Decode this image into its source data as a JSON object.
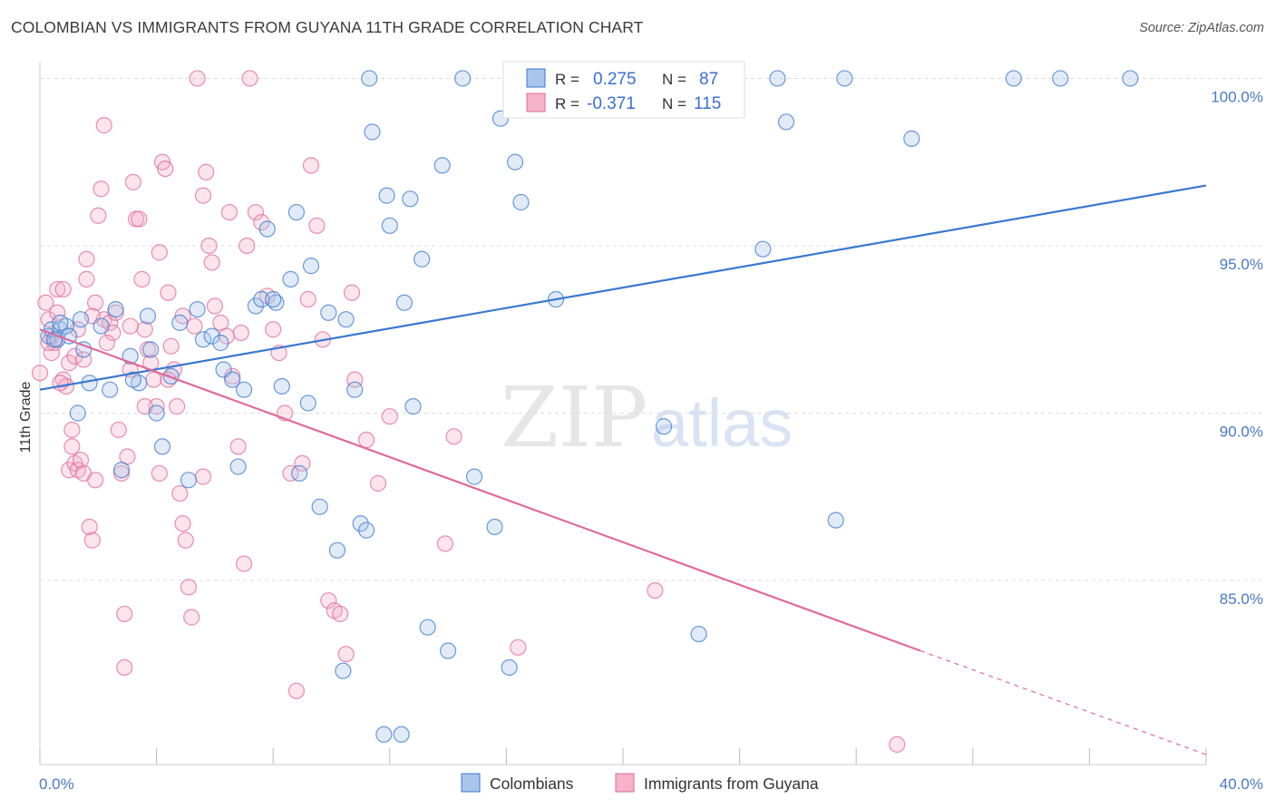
{
  "header": {
    "title": "COLOMBIAN VS IMMIGRANTS FROM GUYANA 11TH GRADE CORRELATION CHART",
    "source": "Source: ZipAtlas.com"
  },
  "watermark": {
    "zip": "ZIP",
    "atlas": "atlas"
  },
  "legend": {
    "r_label": "R =",
    "n_label": "N =",
    "rows": [
      {
        "series": "Colombians",
        "r": "0.275",
        "n": "87"
      },
      {
        "series": "Immigrants from Guyana",
        "r": "-0.371",
        "n": "115"
      }
    ]
  },
  "bottom_legend": [
    "Colombians",
    "Immigrants from Guyana"
  ],
  "colors": {
    "blue": "#3a78d0",
    "blue_fill": "#a9c5ec",
    "pink": "#e06a98",
    "pink_fill": "#f4b3c8",
    "grid": "#dcdcdc",
    "axis_text": "#4a78c2"
  },
  "chart_data": {
    "type": "scatter",
    "title": "COLOMBIAN VS IMMIGRANTS FROM GUYANA 11TH GRADE CORRELATION CHART",
    "xlabel": "",
    "ylabel": "11th Grade",
    "xlim": [
      0,
      40
    ],
    "ylim": [
      79.5,
      100.5
    ],
    "x_tick_labels": [
      "0.0%",
      "40.0%"
    ],
    "y_ticks": [
      85,
      90,
      95,
      100
    ],
    "y_tick_labels": [
      "85.0%",
      "90.0%",
      "95.0%",
      "100.0%"
    ],
    "grid": true,
    "legend_position": "top-center",
    "series": [
      {
        "name": "Colombians",
        "color": "#3a78d0",
        "trend": {
          "x": [
            0,
            40
          ],
          "y": [
            90.7,
            96.8
          ]
        },
        "points": [
          [
            0.3,
            92.3
          ],
          [
            0.4,
            92.5
          ],
          [
            0.6,
            92.2
          ],
          [
            0.7,
            92.5
          ],
          [
            0.9,
            92.6
          ],
          [
            0.7,
            92.7
          ],
          [
            1.0,
            92.3
          ],
          [
            1.4,
            92.8
          ],
          [
            1.5,
            91.9
          ],
          [
            1.7,
            90.9
          ],
          [
            1.3,
            90.0
          ],
          [
            2.1,
            92.6
          ],
          [
            2.4,
            90.7
          ],
          [
            2.6,
            93.1
          ],
          [
            2.8,
            88.3
          ],
          [
            3.1,
            91.7
          ],
          [
            3.4,
            90.9
          ],
          [
            3.7,
            92.9
          ],
          [
            3.8,
            91.9
          ],
          [
            4.0,
            90.0
          ],
          [
            4.2,
            89.0
          ],
          [
            4.5,
            91.1
          ],
          [
            4.8,
            92.7
          ],
          [
            5.1,
            88.0
          ],
          [
            5.4,
            93.1
          ],
          [
            5.6,
            92.2
          ],
          [
            5.9,
            92.3
          ],
          [
            6.3,
            91.3
          ],
          [
            6.6,
            91.0
          ],
          [
            6.8,
            88.4
          ],
          [
            7.0,
            90.7
          ],
          [
            7.4,
            93.2
          ],
          [
            7.6,
            93.4
          ],
          [
            7.8,
            95.5
          ],
          [
            8.1,
            93.3
          ],
          [
            8.3,
            90.8
          ],
          [
            8.6,
            94.0
          ],
          [
            8.8,
            96.0
          ],
          [
            8.9,
            88.2
          ],
          [
            9.2,
            90.3
          ],
          [
            9.3,
            94.4
          ],
          [
            9.6,
            87.2
          ],
          [
            9.9,
            93.0
          ],
          [
            10.2,
            85.9
          ],
          [
            10.5,
            92.8
          ],
          [
            10.8,
            90.7
          ],
          [
            11.0,
            86.7
          ],
          [
            11.3,
            100.0
          ],
          [
            11.4,
            98.4
          ],
          [
            11.9,
            96.5
          ],
          [
            12.0,
            95.6
          ],
          [
            12.5,
            93.3
          ],
          [
            12.7,
            96.4
          ],
          [
            12.8,
            90.2
          ],
          [
            13.1,
            94.6
          ],
          [
            13.8,
            97.4
          ],
          [
            14.0,
            82.9
          ],
          [
            14.5,
            100.0
          ],
          [
            14.9,
            88.1
          ],
          [
            15.6,
            86.6
          ],
          [
            15.8,
            98.8
          ],
          [
            16.1,
            82.4
          ],
          [
            16.3,
            97.5
          ],
          [
            17.7,
            93.4
          ],
          [
            17.8,
            100.0
          ],
          [
            19.0,
            100.0
          ],
          [
            16.5,
            96.3
          ],
          [
            12.4,
            80.4
          ],
          [
            11.8,
            80.4
          ],
          [
            11.2,
            86.5
          ],
          [
            10.4,
            82.3
          ],
          [
            13.3,
            83.6
          ],
          [
            21.4,
            89.6
          ],
          [
            22.6,
            83.4
          ],
          [
            24.8,
            94.9
          ],
          [
            25.3,
            100.0
          ],
          [
            25.6,
            98.7
          ],
          [
            27.6,
            100.0
          ],
          [
            27.3,
            86.8
          ],
          [
            29.9,
            98.2
          ],
          [
            33.4,
            100.0
          ],
          [
            37.4,
            100.0
          ],
          [
            35.0,
            100.0
          ],
          [
            8.0,
            93.4
          ],
          [
            6.2,
            92.1
          ],
          [
            3.2,
            91.0
          ],
          [
            0.5,
            92.2
          ]
        ]
      },
      {
        "name": "Immigrants from Guyana",
        "color": "#e06a98",
        "trend": {
          "x": [
            0,
            30.2
          ],
          "y": [
            92.5,
            82.9
          ]
        },
        "trend_dashed": {
          "x": [
            30.2,
            40
          ],
          "y": [
            82.9,
            79.8
          ]
        },
        "points": [
          [
            0.0,
            91.2
          ],
          [
            0.2,
            93.3
          ],
          [
            0.3,
            92.8
          ],
          [
            0.4,
            92.3
          ],
          [
            0.4,
            91.8
          ],
          [
            0.5,
            92.1
          ],
          [
            0.6,
            93.7
          ],
          [
            0.8,
            93.7
          ],
          [
            0.8,
            91.0
          ],
          [
            0.9,
            90.8
          ],
          [
            1.0,
            91.5
          ],
          [
            1.0,
            88.3
          ],
          [
            1.1,
            89.0
          ],
          [
            1.1,
            89.5
          ],
          [
            1.2,
            88.5
          ],
          [
            1.3,
            92.5
          ],
          [
            1.3,
            88.3
          ],
          [
            1.4,
            88.6
          ],
          [
            1.5,
            88.2
          ],
          [
            1.6,
            94.6
          ],
          [
            1.7,
            86.6
          ],
          [
            1.8,
            86.2
          ],
          [
            1.9,
            88.0
          ],
          [
            2.0,
            95.9
          ],
          [
            2.1,
            96.7
          ],
          [
            2.2,
            98.6
          ],
          [
            2.2,
            92.8
          ],
          [
            2.4,
            92.7
          ],
          [
            2.6,
            93.0
          ],
          [
            2.7,
            89.5
          ],
          [
            2.8,
            88.2
          ],
          [
            2.9,
            84.0
          ],
          [
            2.9,
            82.4
          ],
          [
            3.0,
            88.7
          ],
          [
            3.1,
            91.3
          ],
          [
            3.2,
            96.9
          ],
          [
            3.3,
            95.8
          ],
          [
            3.4,
            95.8
          ],
          [
            3.5,
            94.0
          ],
          [
            3.6,
            92.5
          ],
          [
            3.7,
            91.9
          ],
          [
            3.8,
            91.5
          ],
          [
            3.9,
            91.0
          ],
          [
            4.0,
            90.2
          ],
          [
            4.1,
            88.2
          ],
          [
            4.1,
            94.8
          ],
          [
            4.2,
            97.5
          ],
          [
            4.3,
            97.3
          ],
          [
            4.4,
            93.6
          ],
          [
            4.5,
            92.0
          ],
          [
            4.6,
            91.3
          ],
          [
            4.7,
            90.2
          ],
          [
            4.8,
            87.6
          ],
          [
            4.9,
            86.7
          ],
          [
            5.0,
            86.2
          ],
          [
            5.1,
            84.8
          ],
          [
            5.2,
            83.9
          ],
          [
            5.4,
            100.0
          ],
          [
            5.6,
            96.5
          ],
          [
            5.7,
            97.2
          ],
          [
            5.8,
            95.0
          ],
          [
            5.9,
            94.5
          ],
          [
            6.0,
            93.2
          ],
          [
            6.2,
            92.7
          ],
          [
            6.4,
            92.3
          ],
          [
            6.6,
            91.1
          ],
          [
            6.8,
            89.0
          ],
          [
            7.0,
            85.5
          ],
          [
            7.2,
            100.0
          ],
          [
            7.4,
            96.0
          ],
          [
            7.6,
            95.7
          ],
          [
            7.8,
            93.5
          ],
          [
            8.0,
            92.5
          ],
          [
            8.2,
            91.8
          ],
          [
            8.4,
            90.0
          ],
          [
            8.6,
            88.2
          ],
          [
            8.8,
            81.7
          ],
          [
            9.0,
            88.5
          ],
          [
            9.3,
            97.4
          ],
          [
            9.5,
            95.6
          ],
          [
            9.7,
            92.2
          ],
          [
            9.9,
            84.4
          ],
          [
            10.1,
            84.1
          ],
          [
            10.3,
            84.0
          ],
          [
            10.5,
            82.8
          ],
          [
            10.7,
            93.6
          ],
          [
            10.8,
            91.0
          ],
          [
            11.2,
            89.2
          ],
          [
            11.6,
            87.9
          ],
          [
            12.0,
            89.9
          ],
          [
            13.9,
            86.1
          ],
          [
            14.2,
            89.3
          ],
          [
            16.4,
            83.0
          ],
          [
            21.1,
            84.7
          ],
          [
            29.4,
            80.1
          ],
          [
            2.5,
            92.4
          ],
          [
            1.9,
            93.3
          ],
          [
            0.7,
            90.9
          ],
          [
            0.3,
            92.1
          ],
          [
            1.2,
            91.7
          ],
          [
            3.6,
            90.2
          ],
          [
            4.4,
            91.0
          ],
          [
            2.3,
            92.1
          ],
          [
            1.5,
            91.6
          ],
          [
            6.5,
            96.0
          ],
          [
            7.1,
            95.0
          ],
          [
            5.3,
            92.6
          ],
          [
            0.6,
            93.0
          ],
          [
            1.8,
            92.9
          ],
          [
            4.9,
            92.9
          ],
          [
            3.1,
            92.6
          ],
          [
            6.9,
            92.4
          ],
          [
            9.2,
            93.4
          ],
          [
            1.6,
            94.0
          ],
          [
            5.6,
            88.1
          ]
        ]
      }
    ]
  }
}
